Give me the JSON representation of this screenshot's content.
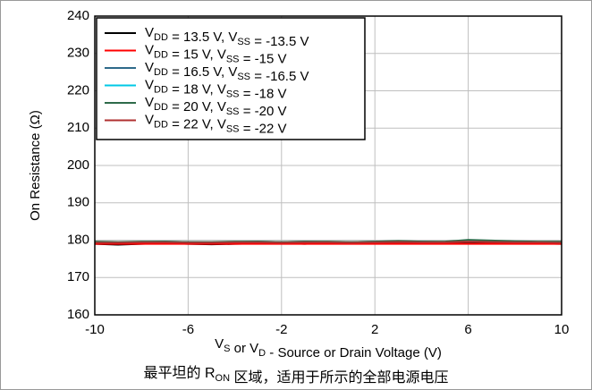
{
  "chart_data": {
    "type": "line",
    "xlabel": "VS or VD - Source or Drain Voltage (V)",
    "ylabel": "On Resistance (Ω)",
    "caption": "最平坦的 RON 区域，适用于所示的全部电源电压",
    "x": [
      -10,
      -9,
      -8,
      -7,
      -6,
      -5,
      -4,
      -3,
      -2,
      -1,
      0,
      1,
      2,
      3,
      4,
      5,
      6,
      7,
      8,
      9,
      10
    ],
    "xlim": [
      -10,
      10
    ],
    "xticks": [
      -10,
      -6,
      -2,
      2,
      6,
      10
    ],
    "ylim": [
      160,
      240
    ],
    "yticks": [
      160,
      170,
      180,
      190,
      200,
      210,
      220,
      230,
      240
    ],
    "grid": true,
    "legend": "upper left",
    "series": [
      {
        "name": "VDD = 13.5 V, VSS = -13.5 V",
        "color": "#000000",
        "values": [
          179,
          178.8,
          179,
          179.2,
          179,
          178.9,
          179,
          179.1,
          179.2,
          179,
          179.3,
          179.2,
          179.1,
          179.3,
          179.2,
          179.1,
          179.4,
          179.3,
          179.2,
          179.1,
          179
        ]
      },
      {
        "name": "VDD = 15 V, VSS = -15 V",
        "color": "#ff0000",
        "values": [
          179,
          179,
          179,
          179,
          179,
          179,
          179,
          179,
          179,
          179,
          179,
          179,
          179,
          179,
          179,
          179,
          179,
          179,
          179,
          179,
          179
        ]
      },
      {
        "name": "VDD = 16.5 V, VSS = -16.5 V",
        "color": "#2e6a8a",
        "values": [
          179.5,
          179.4,
          179.5,
          179.6,
          179.5,
          179.4,
          179.5,
          179.6,
          179.5,
          179.6,
          179.5,
          179.5,
          179.6,
          179.7,
          179.6,
          179.5,
          179.9,
          179.8,
          179.6,
          179.5,
          179.5
        ]
      },
      {
        "name": "VDD = 18 V, VSS = -18 V",
        "color": "#00c8e6",
        "values": [
          179.4,
          179.4,
          179.5,
          179.5,
          179.4,
          179.4,
          179.5,
          179.5,
          179.4,
          179.5,
          179.5,
          179.4,
          179.5,
          179.6,
          179.5,
          179.5,
          179.8,
          179.7,
          179.5,
          179.5,
          179.4
        ]
      },
      {
        "name": "VDD = 20 V, VSS = -20 V",
        "color": "#2e6b4a",
        "values": [
          179.6,
          179.5,
          179.6,
          179.6,
          179.5,
          179.5,
          179.6,
          179.6,
          179.5,
          179.6,
          179.6,
          179.5,
          179.6,
          179.8,
          179.6,
          179.6,
          180.1,
          179.9,
          179.7,
          179.6,
          179.6
        ]
      },
      {
        "name": "VDD = 22 V, VSS = -22 V",
        "color": "#b03030",
        "values": [
          179.3,
          179.3,
          179.4,
          179.4,
          179.3,
          179.3,
          179.4,
          179.4,
          179.3,
          179.4,
          179.4,
          179.3,
          179.4,
          179.5,
          179.4,
          179.4,
          179.6,
          179.5,
          179.4,
          179.4,
          179.3
        ]
      }
    ]
  }
}
